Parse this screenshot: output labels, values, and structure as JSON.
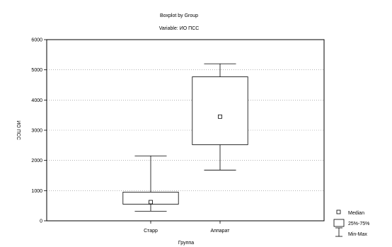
{
  "chart_data": {
    "type": "boxplot",
    "title": "Boxplot by Group",
    "subtitle": "Variable: ИО ПСС",
    "xlabel": "Группа",
    "ylabel": "ИО ПСС",
    "ylim": [
      0,
      6000
    ],
    "yticks": [
      "0",
      "1000",
      "2000",
      "3000",
      "4000",
      "5000",
      "6000"
    ],
    "grid": true,
    "categories": [
      "Старр",
      "Аппарат"
    ],
    "boxes": [
      {
        "category": "Старр",
        "min": 320,
        "q1": 550,
        "median": 620,
        "q3": 950,
        "max": 2150
      },
      {
        "category": "Аппарат",
        "min": 1680,
        "q1": 2520,
        "median": 3450,
        "q3": 4770,
        "max": 5200
      }
    ],
    "legend": {
      "placement": "bottom-right",
      "items": [
        "Median",
        "25%-75%",
        "Min-Max"
      ]
    }
  }
}
